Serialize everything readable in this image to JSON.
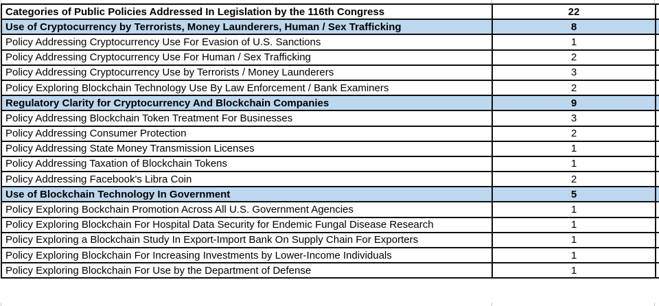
{
  "colors": {
    "category_row_bg": "#BDD7EE",
    "table_border": "#0D0D0D",
    "gridline": "#C9C9C9",
    "text": "#000000",
    "row_bg": "#FFFFFF"
  },
  "chart_data": {
    "type": "table",
    "title": "Categories of Public Policies Addressed In Legislation by the 116th Congress",
    "total_count": 22,
    "rows": [
      {
        "label": "Categories of Public Policies Addressed In Legislation by the 116th Congress",
        "value": 22,
        "role": "title"
      },
      {
        "label": "Use of Cryptocurrency by Terrorists, Money Launderers, Human / Sex Trafficking",
        "value": 8,
        "role": "category"
      },
      {
        "label": "Policy Addressing Cryptocurrency Use For Evasion of U.S. Sanctions",
        "value": 1,
        "role": "item"
      },
      {
        "label": "Policy Addressing Cryptocurrency Use For Human / Sex Trafficking",
        "value": 2,
        "role": "item"
      },
      {
        "label": "Policy Addressing Cryptocurrency Use by Terrorists / Money Launderers",
        "value": 3,
        "role": "item"
      },
      {
        "label": "Policy Exploring Blockchain Technology Use By Law Enforcement / Bank Examiners",
        "value": 2,
        "role": "item"
      },
      {
        "label": "Regulatory Clarity for Cryptocurrency And Blockchain Companies",
        "value": 9,
        "role": "category"
      },
      {
        "label": "Policy Addressing Blockchain Token Treatment For Businesses",
        "value": 3,
        "role": "item"
      },
      {
        "label": "Policy Addressing Consumer Protection",
        "value": 2,
        "role": "item"
      },
      {
        "label": "Policy Addressing State Money Transmission Licenses",
        "value": 1,
        "role": "item"
      },
      {
        "label": "Policy Addressing Taxation of Blockchain Tokens",
        "value": 1,
        "role": "item"
      },
      {
        "label": "Policy Addressing Facebook's Libra Coin",
        "value": 2,
        "role": "item"
      },
      {
        "label": "Use of Blockchain Technology In Government",
        "value": 5,
        "role": "category"
      },
      {
        "label": "Policy Exploring Bockchain Promotion Across All U.S. Government Agencies",
        "value": 1,
        "role": "item"
      },
      {
        "label": "Policy Exploring Blockchain For Hospital Data Security for Endemic Fungal Disease Research",
        "value": 1,
        "role": "item"
      },
      {
        "label": "Policy Exploring a Blockchain Study In Export-Import Bank On Supply Chain For Exporters",
        "value": 1,
        "role": "item"
      },
      {
        "label": "Policy Exploring Blockchain For Increasing Investments by Lower-Income Individuals",
        "value": 1,
        "role": "item"
      },
      {
        "label": "Policy Exploring Blockchain For Use by the Department of Defense",
        "value": 1,
        "role": "item"
      }
    ]
  }
}
